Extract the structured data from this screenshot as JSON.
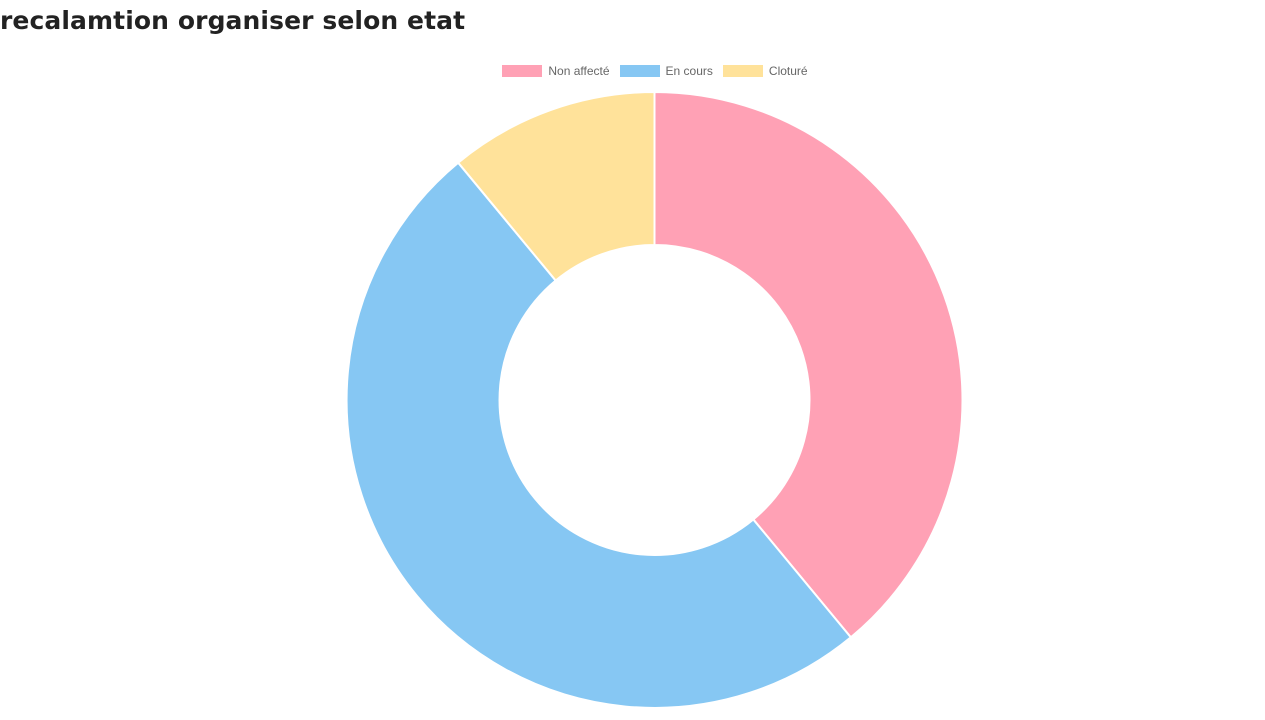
{
  "page": {
    "title": "recalamtion organiser selon etat"
  },
  "chart_data": {
    "type": "pie",
    "variant": "doughnut",
    "legend_position": "top",
    "categories": [
      "Non affecté",
      "En cours",
      "Cloturé"
    ],
    "values": [
      39,
      50,
      11
    ],
    "colors": [
      "#ffa1b5",
      "#86c7f3",
      "#ffe29a"
    ]
  }
}
